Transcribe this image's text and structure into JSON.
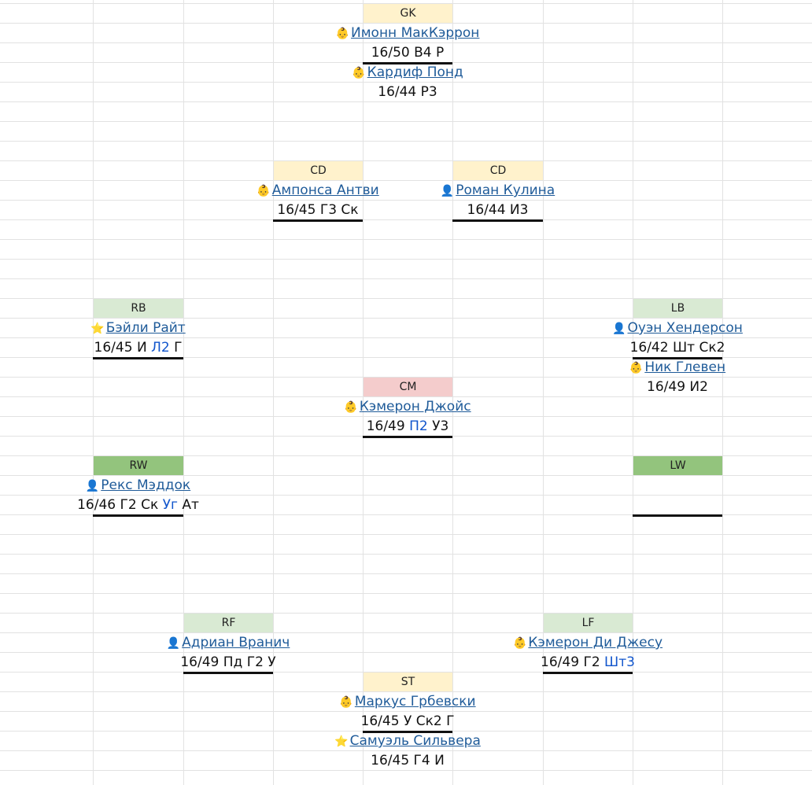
{
  "positions": [
    {
      "label": "GK",
      "color": "#fff2cc",
      "players": [
        {
          "icon": "👶",
          "name": "Имонн МакКэррон",
          "stats": [
            "16/50",
            "В4",
            "Р"
          ]
        },
        {
          "icon": "👶",
          "name": "Кардиф Понд",
          "stats": [
            "16/44",
            "Р3"
          ]
        }
      ]
    },
    {
      "label": "CD",
      "color": "#fff2cc",
      "players": [
        {
          "icon": "👶",
          "name": "Ампонса Антви",
          "stats": [
            "16/45",
            "Г3",
            "Ск"
          ]
        }
      ]
    },
    {
      "label": "CD",
      "color": "#fff2cc",
      "players": [
        {
          "icon": "👤",
          "name": "Роман Кулина",
          "stats": [
            "16/44",
            "И3"
          ]
        }
      ]
    },
    {
      "label": "RB",
      "color": "#d9ead3",
      "players": [
        {
          "icon": "⭐",
          "name": "Бэйли Райт",
          "stats": [
            "16/45",
            "И",
            {
              "text": "Л2",
              "color": "#1155cc"
            },
            "Г"
          ]
        }
      ]
    },
    {
      "label": "LB",
      "color": "#d9ead3",
      "players": [
        {
          "icon": "👤",
          "name": "Оуэн Хендерсон",
          "stats": [
            "16/42",
            "Шт",
            "Ск2"
          ]
        },
        {
          "icon": "👶",
          "name": "Ник Глевен",
          "stats": [
            "16/49",
            "И2"
          ]
        }
      ]
    },
    {
      "label": "CM",
      "color": "#f4cccc",
      "players": [
        {
          "icon": "👶",
          "name": "Кэмерон Джойс",
          "stats": [
            "16/49",
            {
              "text": "П2",
              "color": "#1155cc"
            },
            "У3"
          ]
        }
      ]
    },
    {
      "label": "RW",
      "color": "#93c47d",
      "players": [
        {
          "icon": "👤",
          "name": "Рекс Мэддок",
          "stats": [
            "16/46",
            "Г2",
            "Ск",
            {
              "text": "Уг",
              "color": "#1155cc"
            },
            "Ат"
          ]
        }
      ]
    },
    {
      "label": "LW",
      "color": "#93c47d",
      "players": []
    },
    {
      "label": "RF",
      "color": "#d9ead3",
      "players": [
        {
          "icon": "👤",
          "name": "Адриан Вранич",
          "stats": [
            "16/49",
            "Пд",
            "Г2",
            "У"
          ]
        }
      ]
    },
    {
      "label": "LF",
      "color": "#d9ead3",
      "players": [
        {
          "icon": "👶",
          "name": "Кэмерон Ди Джесу",
          "stats": [
            "16/49",
            "Г2",
            {
              "text": "Шт3",
              "color": "#1155cc"
            }
          ]
        }
      ]
    },
    {
      "label": "ST",
      "color": "#fff2cc",
      "players": [
        {
          "icon": "👶",
          "name": "Маркус Грбевски",
          "stats": [
            "16/45",
            "У",
            "Ск2",
            "Г"
          ]
        },
        {
          "icon": "⭐",
          "name": "Самуэль Сильвера",
          "stats": [
            "16/45",
            "Г4",
            "И"
          ]
        }
      ]
    }
  ]
}
